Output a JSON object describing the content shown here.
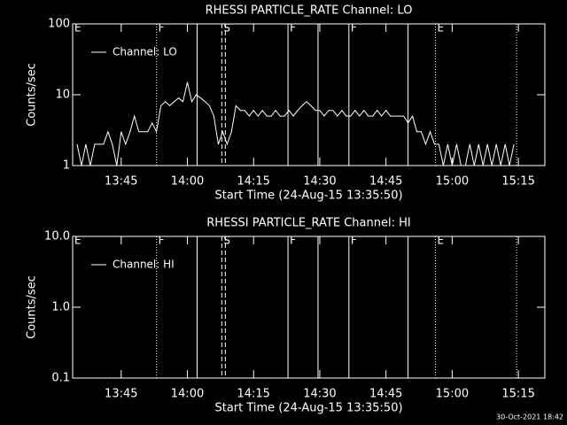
{
  "chart_data": [
    {
      "type": "line",
      "title": "RHESSI PARTICLE_RATE Channel: LO",
      "xlabel": "Start Time (24-Aug-15 13:35:50)",
      "ylabel": "Counts/sec",
      "log_y": true,
      "legend": "upper left",
      "x": [
        815,
        816,
        817,
        818,
        819,
        820,
        821,
        822,
        823,
        824,
        825,
        826,
        827,
        828,
        829,
        830,
        831,
        832,
        833,
        834,
        835,
        836,
        837,
        838,
        839,
        840,
        841,
        842,
        843,
        844,
        845,
        846,
        847,
        848,
        849,
        850,
        851,
        852,
        853,
        854,
        855,
        856,
        857,
        858,
        859,
        860,
        861,
        862,
        863,
        864,
        865,
        866,
        867,
        868,
        869,
        870,
        871,
        872,
        873,
        874,
        875,
        876,
        877,
        878,
        879,
        880,
        881,
        882,
        883,
        884,
        885,
        886,
        887,
        888,
        889,
        890,
        891,
        892,
        893,
        894,
        895,
        896,
        897,
        898,
        899,
        900,
        901,
        902,
        903,
        904,
        905,
        906,
        907,
        908,
        909,
        910,
        911,
        912,
        913,
        914
      ],
      "series": [
        {
          "name": "Channel: LO",
          "color": "#ffffff",
          "values": [
            2,
            1,
            2,
            1,
            2,
            2,
            2,
            3,
            2,
            1,
            3,
            2,
            3,
            5,
            3,
            3,
            3,
            4,
            3,
            7,
            8,
            7,
            8,
            9,
            8,
            15,
            8,
            10,
            9,
            8,
            7,
            5,
            2,
            3,
            2,
            3,
            7,
            6,
            6,
            5,
            6,
            5,
            6,
            5,
            5,
            6,
            5,
            5,
            6,
            5,
            6,
            7,
            8,
            7,
            6,
            6,
            5,
            6,
            6,
            5,
            6,
            5,
            5,
            6,
            5,
            6,
            5,
            5,
            6,
            5,
            6,
            5,
            5,
            5,
            5,
            4,
            5,
            3,
            3,
            2,
            3,
            2,
            2,
            1,
            2,
            1,
            2,
            1,
            1,
            2,
            1,
            2,
            1,
            2,
            1,
            2,
            1,
            2,
            1,
            2
          ]
        }
      ],
      "xlim": [
        814,
        921
      ],
      "ylim": [
        1,
        100
      ],
      "yticks": [
        1,
        10,
        100
      ],
      "xticks": [
        {
          "value": 825,
          "label": "13:45"
        },
        {
          "value": 840,
          "label": "14:00"
        },
        {
          "value": 855,
          "label": "14:15"
        },
        {
          "value": 870,
          "label": "14:30"
        },
        {
          "value": 885,
          "label": "14:45"
        },
        {
          "value": 900,
          "label": "15:00"
        },
        {
          "value": 915,
          "label": "15:15"
        }
      ],
      "vlines": [
        {
          "x": 833,
          "style": "dotted"
        },
        {
          "x": 842.2,
          "style": "solid"
        },
        {
          "x": 847.8,
          "style": "dashed"
        },
        {
          "x": 848.6,
          "style": "dashed"
        },
        {
          "x": 862.8,
          "style": "solid"
        },
        {
          "x": 869.6,
          "style": "solid"
        },
        {
          "x": 876.6,
          "style": "solid"
        },
        {
          "x": 890,
          "style": "solid"
        },
        {
          "x": 896.2,
          "style": "dotted"
        },
        {
          "x": 914.6,
          "style": "dotted"
        }
      ],
      "vline_labels": [
        {
          "text": "E",
          "x": 814.4
        },
        {
          "text": "F",
          "x": 833.4
        },
        {
          "text": "S",
          "x": 848.2
        },
        {
          "text": "F",
          "x": 863.2
        },
        {
          "text": "F",
          "x": 877
        },
        {
          "text": "E",
          "x": 896.6
        }
      ]
    },
    {
      "type": "line",
      "title": "RHESSI PARTICLE_RATE Channel: HI",
      "xlabel": "Start Time (24-Aug-15 13:35:50)",
      "ylabel": "Counts/sec",
      "log_y": true,
      "legend": "upper left",
      "x": [],
      "series": [
        {
          "name": "Channel: HI",
          "color": "#ffffff",
          "values": []
        }
      ],
      "xlim": [
        814,
        921
      ],
      "ylim": [
        0.1,
        10
      ],
      "yticks": [
        0.1,
        {
          "value": 1,
          "label": "1.0"
        },
        {
          "value": 10,
          "label": "10.0"
        }
      ],
      "xticks": [
        {
          "value": 825,
          "label": "13:45"
        },
        {
          "value": 840,
          "label": "14:00"
        },
        {
          "value": 855,
          "label": "14:15"
        },
        {
          "value": 870,
          "label": "14:30"
        },
        {
          "value": 885,
          "label": "14:45"
        },
        {
          "value": 900,
          "label": "15:00"
        },
        {
          "value": 915,
          "label": "15:15"
        }
      ],
      "vlines": [
        {
          "x": 833,
          "style": "dotted"
        },
        {
          "x": 842.2,
          "style": "solid"
        },
        {
          "x": 847.8,
          "style": "dashed"
        },
        {
          "x": 848.6,
          "style": "dashed"
        },
        {
          "x": 862.8,
          "style": "solid"
        },
        {
          "x": 869.6,
          "style": "solid"
        },
        {
          "x": 876.6,
          "style": "solid"
        },
        {
          "x": 890,
          "style": "solid"
        },
        {
          "x": 896.2,
          "style": "dotted"
        },
        {
          "x": 914.6,
          "style": "dotted"
        }
      ],
      "vline_labels": [
        {
          "text": "E",
          "x": 814.4
        },
        {
          "text": "F",
          "x": 833.4
        },
        {
          "text": "S",
          "x": 848.2
        },
        {
          "text": "F",
          "x": 863.2
        },
        {
          "text": "F",
          "x": 877
        },
        {
          "text": "E",
          "x": 896.6
        }
      ]
    }
  ],
  "footer": "30-Oct-2021 18:42"
}
